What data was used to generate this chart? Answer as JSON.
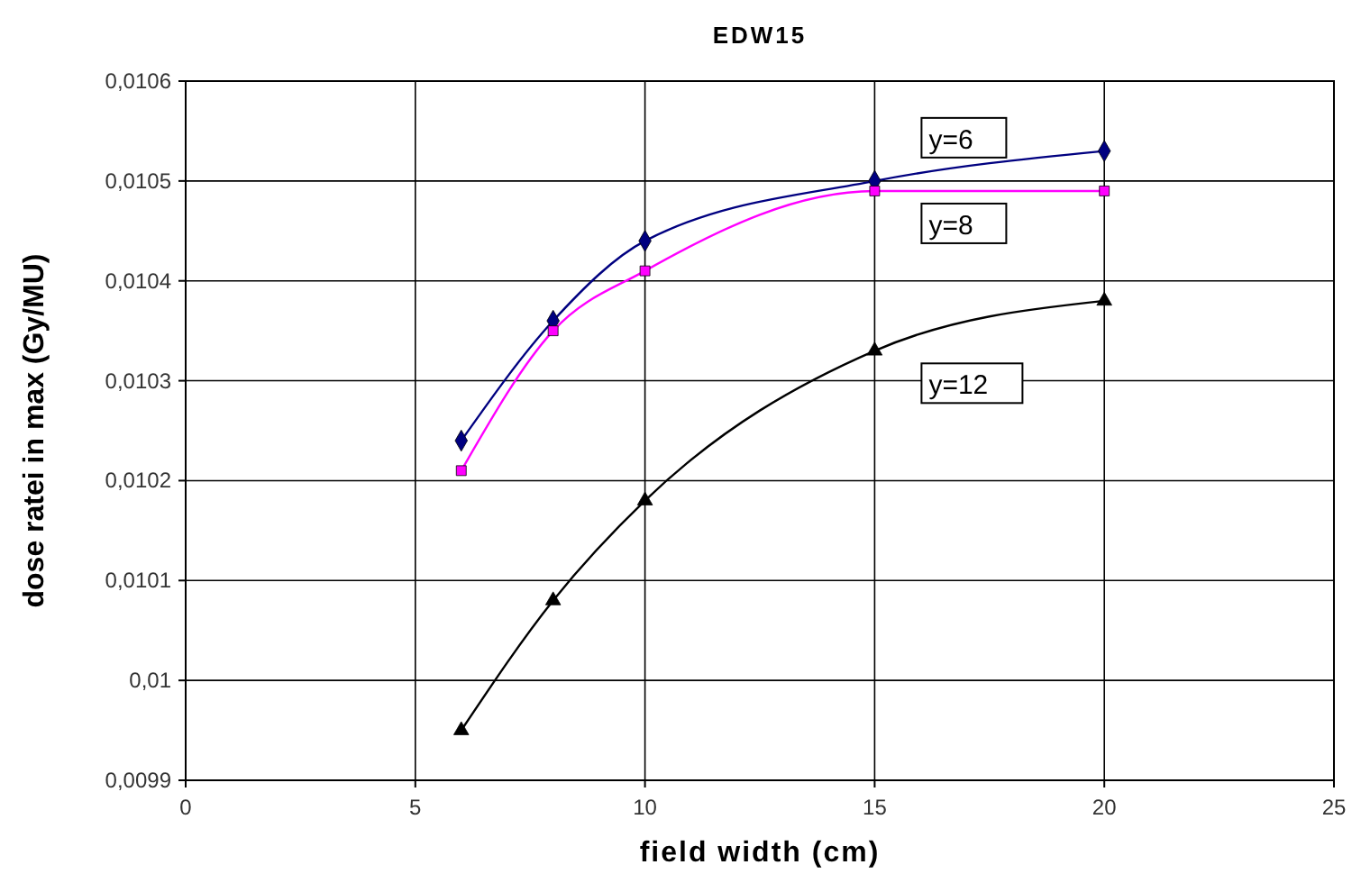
{
  "chart_data": {
    "type": "line",
    "title": "EDW15",
    "xlabel": "field width (cm)",
    "ylabel": "dose ratei in max (Gy/MU)",
    "x": [
      6,
      8,
      10,
      15,
      20
    ],
    "series": [
      {
        "name": "y=6",
        "color": "#000080",
        "marker": "diamond",
        "values": [
          0.01024,
          0.01036,
          0.01044,
          0.0105,
          0.01053
        ]
      },
      {
        "name": "y=8",
        "color": "#ff00ff",
        "marker": "square",
        "values": [
          0.01021,
          0.01035,
          0.01041,
          0.01049,
          0.01049
        ]
      },
      {
        "name": "y=12",
        "color": "#000000",
        "marker": "triangle",
        "values": [
          0.00995,
          0.01008,
          0.01018,
          0.01033,
          0.01038
        ]
      }
    ],
    "xlim": [
      0,
      25
    ],
    "xticks": [
      0,
      5,
      10,
      15,
      20,
      25
    ],
    "ylim": [
      0.0099,
      0.0106
    ],
    "yticks": [
      {
        "value": 0.0099,
        "label": "0,0099"
      },
      {
        "value": 0.01,
        "label": "0,01"
      },
      {
        "value": 0.0101,
        "label": "0,0101"
      },
      {
        "value": 0.0102,
        "label": "0,0102"
      },
      {
        "value": 0.0103,
        "label": "0,0103"
      },
      {
        "value": 0.0104,
        "label": "0,0104"
      },
      {
        "value": 0.0105,
        "label": "0,0105"
      },
      {
        "value": 0.0106,
        "label": "0,0106"
      }
    ],
    "grid": true
  }
}
